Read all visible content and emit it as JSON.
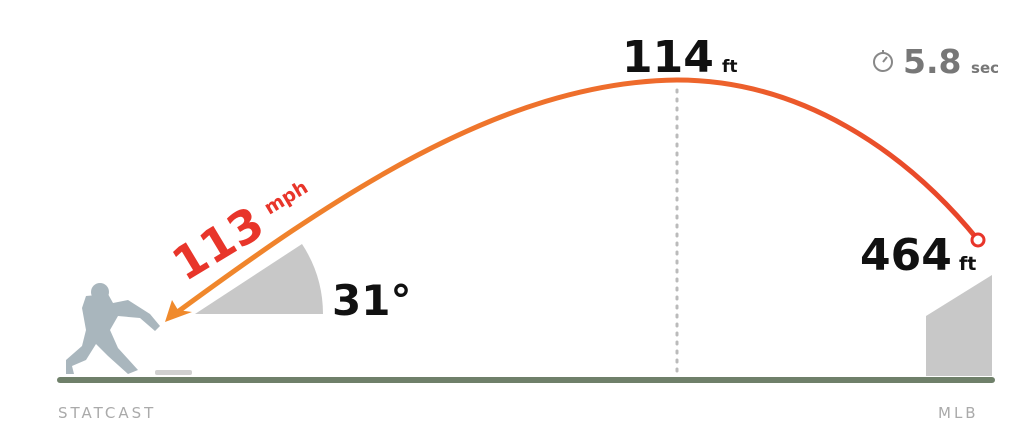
{
  "exit_velocity": {
    "value": "113",
    "unit": "mph"
  },
  "launch_angle": {
    "value": "31°"
  },
  "apex": {
    "value": "114",
    "unit": "ft"
  },
  "hang_time": {
    "value": "5.8",
    "unit": "sec",
    "icon": "stopwatch-icon"
  },
  "distance": {
    "value": "464",
    "unit": "ft"
  },
  "labels": {
    "left": "STATCAST",
    "right": "MLB"
  },
  "colors": {
    "trajectory_start": "#f08a2c",
    "trajectory_end": "#e8432a",
    "exit_velocity_text": "#e8352a",
    "ground": "#6f806a",
    "batter": "#a9b6bd",
    "wedge": "#c8c8c8"
  }
}
